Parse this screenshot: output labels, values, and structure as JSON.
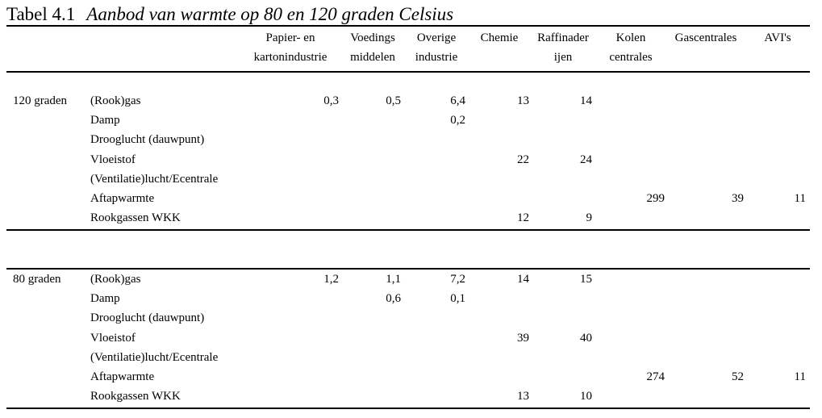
{
  "caption": {
    "number": "Tabel 4.1",
    "title": "Aanbod van warmte op 80 en 120 graden Celsius"
  },
  "columns": [
    {
      "line1": "Papier- en",
      "line2": "kartonindustrie"
    },
    {
      "line1": "Voedings",
      "line2": "middelen"
    },
    {
      "line1": "Overige",
      "line2": "industrie"
    },
    {
      "line1": "Chemie",
      "line2": ""
    },
    {
      "line1": "Raffinader",
      "line2": "ijen"
    },
    {
      "line1": "Kolen",
      "line2": "centrales"
    },
    {
      "line1": "Gascentrales",
      "line2": ""
    },
    {
      "line1": "AVI's",
      "line2": ""
    }
  ],
  "sections": [
    {
      "label": "120 graden",
      "rows": [
        {
          "name": "(Rook)gas",
          "values": [
            "0,3",
            "0,5",
            "6,4",
            "13",
            "14",
            "",
            "",
            ""
          ]
        },
        {
          "name": "Damp",
          "values": [
            "",
            "",
            "0,2",
            "",
            "",
            "",
            "",
            ""
          ]
        },
        {
          "name": "Drooglucht (dauwpunt)",
          "values": [
            "",
            "",
            "",
            "",
            "",
            "",
            "",
            ""
          ]
        },
        {
          "name": "Vloeistof",
          "values": [
            "",
            "",
            "",
            "22",
            "24",
            "",
            "",
            ""
          ]
        },
        {
          "name": "(Ventilatie)lucht/Ecentrale",
          "values": [
            "",
            "",
            "",
            "",
            "",
            "",
            "",
            ""
          ]
        },
        {
          "name": "Aftapwarmte",
          "values": [
            "",
            "",
            "",
            "",
            "",
            "299",
            "39",
            "11"
          ]
        },
        {
          "name": "Rookgassen WKK",
          "values": [
            "",
            "",
            "",
            "12",
            "9",
            "",
            "",
            ""
          ]
        }
      ]
    },
    {
      "label": "80 graden",
      "rows": [
        {
          "name": "(Rook)gas",
          "values": [
            "1,2",
            "1,1",
            "7,2",
            "14",
            "15",
            "",
            "",
            ""
          ]
        },
        {
          "name": "Damp",
          "values": [
            "",
            "0,6",
            "0,1",
            "",
            "",
            "",
            "",
            ""
          ]
        },
        {
          "name": "Drooglucht (dauwpunt)",
          "values": [
            "",
            "",
            "",
            "",
            "",
            "",
            "",
            ""
          ]
        },
        {
          "name": "Vloeistof",
          "values": [
            "",
            "",
            "",
            "39",
            "40",
            "",
            "",
            ""
          ]
        },
        {
          "name": "(Ventilatie)lucht/Ecentrale",
          "values": [
            "",
            "",
            "",
            "",
            "",
            "",
            "",
            ""
          ]
        },
        {
          "name": "Aftapwarmte",
          "values": [
            "",
            "",
            "",
            "",
            "",
            "274",
            "52",
            "11"
          ]
        },
        {
          "name": "Rookgassen WKK",
          "values": [
            "",
            "",
            "",
            "13",
            "10",
            "",
            "",
            ""
          ]
        }
      ]
    }
  ]
}
